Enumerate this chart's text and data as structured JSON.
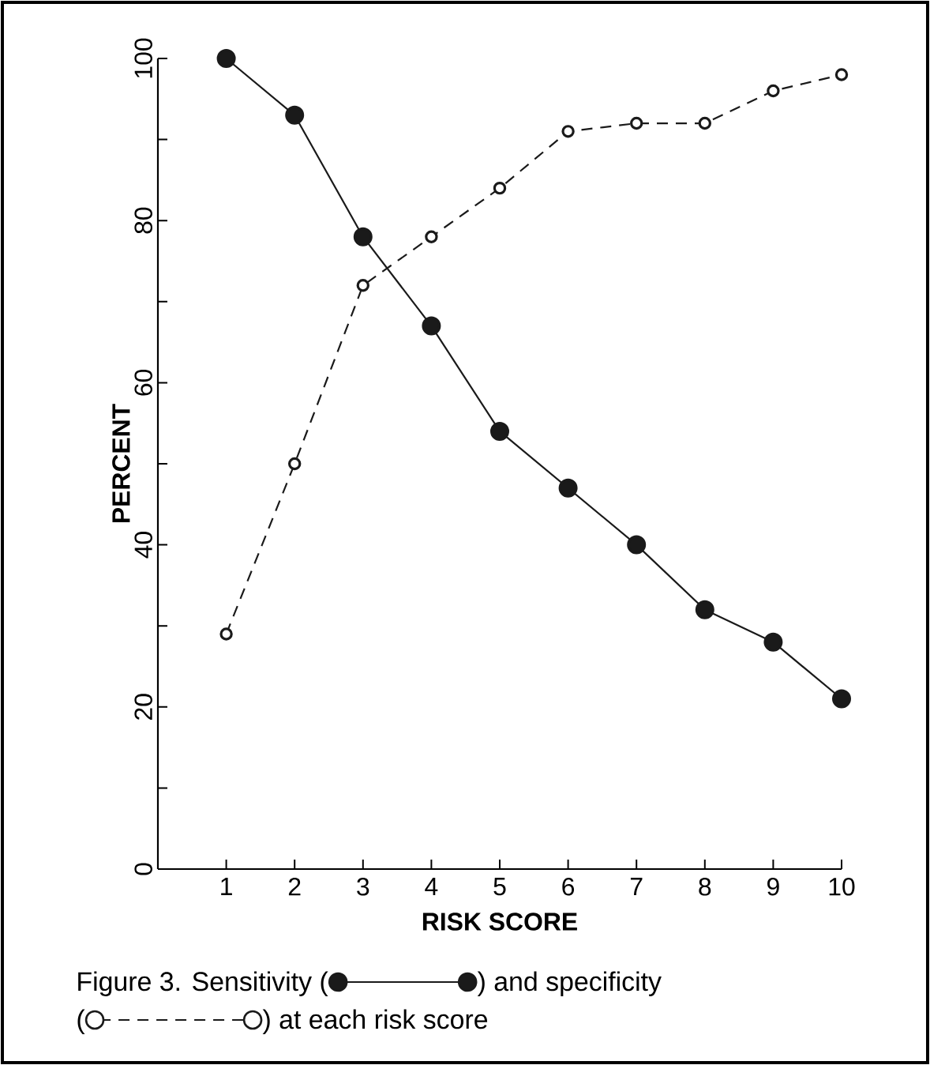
{
  "chart_data": {
    "type": "line",
    "xlabel": "RISK SCORE",
    "ylabel": "PERCENT",
    "x": [
      1,
      2,
      3,
      4,
      5,
      6,
      7,
      8,
      9,
      10
    ],
    "series": [
      {
        "color": "#1a1a1a",
        "line_style": "solid",
        "marker": "circle",
        "values": [
          100,
          93,
          78,
          67,
          54,
          47,
          40,
          32,
          28,
          21
        ]
      },
      {
        "color": "#1a1a1a",
        "line_style": "dashed",
        "marker": "circle",
        "values": [
          29,
          50,
          72,
          78,
          84,
          91,
          92,
          92,
          96,
          98
        ]
      }
    ],
    "xlim": [
      0,
      10
    ],
    "xticks": [
      1,
      2,
      3,
      4,
      5,
      6,
      7,
      8,
      9,
      10
    ],
    "ylim": [
      0,
      100
    ],
    "yticks": [
      0,
      {
        "value": 10,
        "label": null
      },
      20,
      {
        "value": 30,
        "label": null
      },
      40,
      {
        "value": 50,
        "label": null
      },
      60,
      {
        "value": 70,
        "label": null
      },
      80,
      {
        "value": 90,
        "label": null
      },
      100
    ],
    "grid": false,
    "annotations": [
      "Figure 3. Sensitivity (",
      ") and specificity",
      "(",
      ") at each risk score"
    ]
  }
}
